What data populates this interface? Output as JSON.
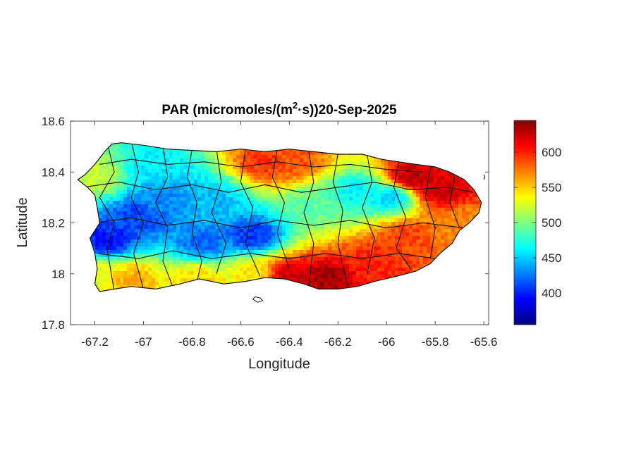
{
  "chart_data": {
    "type": "heatmap",
    "title_prefix": "PAR (micromoles/(m",
    "title_sup": "2",
    "title_suffix": "·s))20-Sep-2025",
    "xlabel": "Longitude",
    "ylabel": "Latitude",
    "xlim": [
      -67.3,
      -65.58
    ],
    "ylim": [
      17.8,
      18.6
    ],
    "x_ticks": [
      -67.2,
      -67,
      -66.8,
      -66.6,
      -66.4,
      -66.2,
      -66,
      -65.8,
      -65.6
    ],
    "x_tick_labels": [
      "-67.2",
      "-67",
      "-66.8",
      "-66.6",
      "-66.4",
      "-66.2",
      "-66",
      "-65.8",
      "-65.6"
    ],
    "y_ticks": [
      17.8,
      18,
      18.2,
      18.4,
      18.6
    ],
    "y_tick_labels": [
      "17.8",
      "18",
      "18.2",
      "18.4",
      "18.6"
    ],
    "colorbar": {
      "colormap": "jet",
      "range": [
        355,
        645
      ],
      "ticks": [
        400,
        450,
        500,
        550,
        600
      ],
      "tick_labels": [
        "400",
        "450",
        "500",
        "550",
        "600"
      ]
    },
    "colormap_stops": [
      "#00007f",
      "#0000ff",
      "#007fff",
      "#00ffff",
      "#7fff7f",
      "#ffff00",
      "#ff7f00",
      "#ff0000",
      "#7f0000"
    ],
    "grid": false,
    "field_centers": [
      {
        "lon": -67.15,
        "lat": 18.13,
        "value": 395
      },
      {
        "lon": -67.02,
        "lat": 18.22,
        "value": 410
      },
      {
        "lon": -66.9,
        "lat": 18.3,
        "value": 430
      },
      {
        "lon": -66.75,
        "lat": 18.12,
        "value": 420
      },
      {
        "lon": -66.55,
        "lat": 18.15,
        "value": 405
      },
      {
        "lon": -66.7,
        "lat": 18.28,
        "value": 445
      },
      {
        "lon": -66.95,
        "lat": 18.42,
        "value": 460
      },
      {
        "lon": -66.12,
        "lat": 18.32,
        "value": 460
      },
      {
        "lon": -65.98,
        "lat": 18.3,
        "value": 450
      },
      {
        "lon": -66.3,
        "lat": 18.27,
        "value": 490
      },
      {
        "lon": -66.25,
        "lat": 17.98,
        "value": 635
      },
      {
        "lon": -66.4,
        "lat": 17.99,
        "value": 625
      },
      {
        "lon": -66.05,
        "lat": 18.05,
        "value": 600
      },
      {
        "lon": -65.9,
        "lat": 18.38,
        "value": 630
      },
      {
        "lon": -65.78,
        "lat": 18.33,
        "value": 625
      },
      {
        "lon": -66.5,
        "lat": 18.44,
        "value": 595
      },
      {
        "lon": -66.38,
        "lat": 18.44,
        "value": 585
      },
      {
        "lon": -65.92,
        "lat": 18.15,
        "value": 590
      },
      {
        "lon": -65.7,
        "lat": 18.2,
        "value": 570
      },
      {
        "lon": -67.05,
        "lat": 17.98,
        "value": 560
      },
      {
        "lon": -67.2,
        "lat": 18.0,
        "value": 530
      },
      {
        "lon": -66.78,
        "lat": 17.98,
        "value": 545
      },
      {
        "lon": -67.2,
        "lat": 18.38,
        "value": 520
      },
      {
        "lon": -66.55,
        "lat": 18.0,
        "value": 540
      }
    ]
  }
}
